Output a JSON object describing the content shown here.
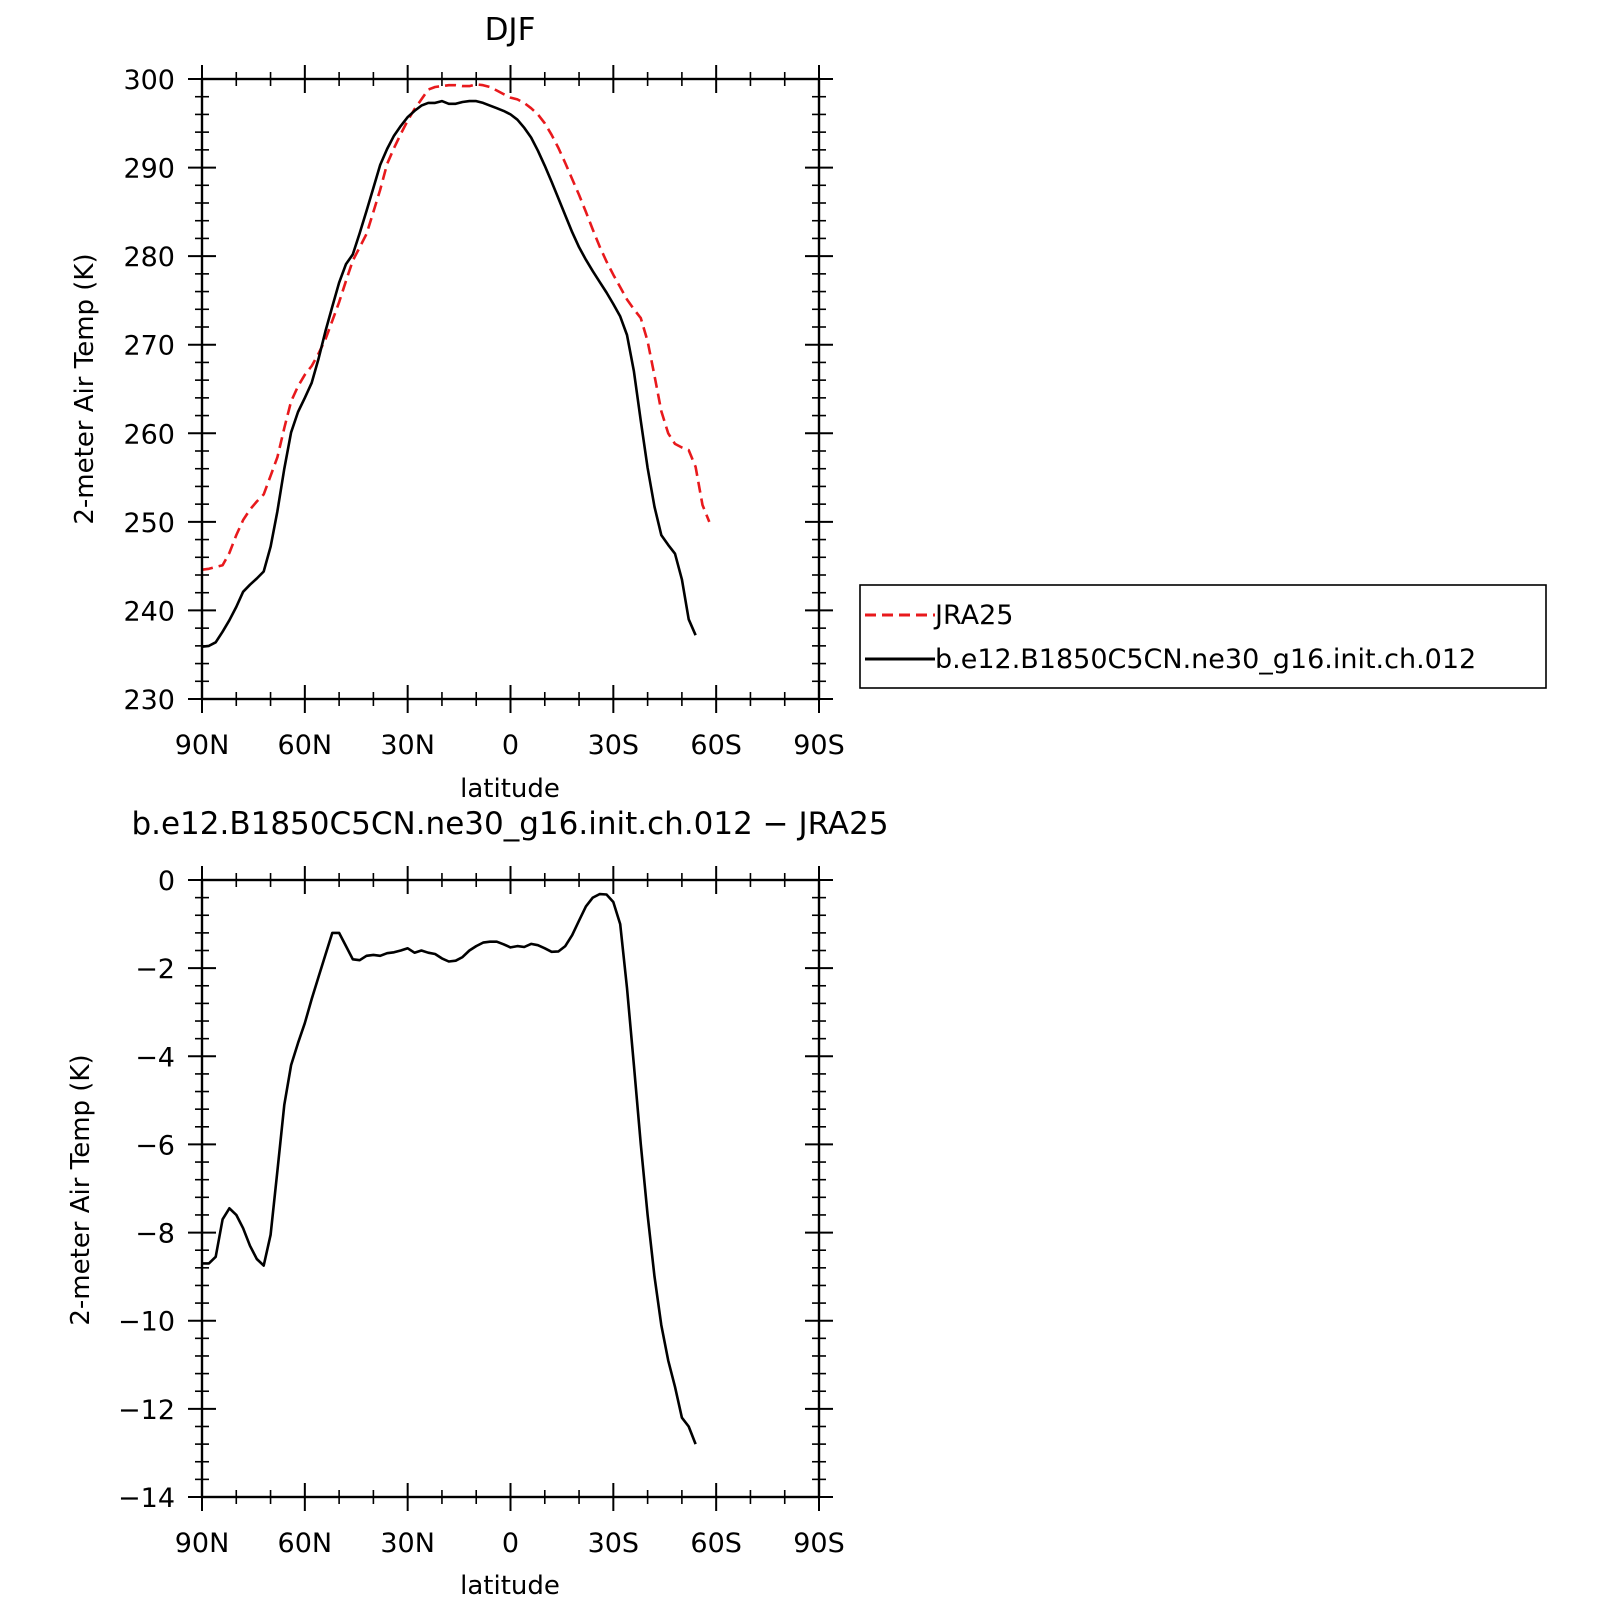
{
  "chart_data": [
    {
      "type": "line",
      "title": "DJF",
      "xlabel": "latitude",
      "ylabel": "2-meter Air Temp (K)",
      "xlim": [
        90,
        -90
      ],
      "ylim": [
        230,
        300
      ],
      "yticks": [
        230,
        240,
        250,
        260,
        270,
        280,
        290,
        300
      ],
      "xticks": [
        {
          "value": 90,
          "label": "90N"
        },
        {
          "value": 60,
          "label": "60N"
        },
        {
          "value": 30,
          "label": "30N"
        },
        {
          "value": 0,
          "label": "0"
        },
        {
          "value": -30,
          "label": "30S"
        },
        {
          "value": -60,
          "label": "60S"
        },
        {
          "value": -90,
          "label": "90S"
        }
      ],
      "legend": {
        "placement": "right",
        "entries": [
          "JRA25",
          "b.e12.B1850C5CN.ne30_g16.init.ch.012"
        ]
      },
      "series": [
        {
          "name": "JRA25",
          "color": "#e8191c",
          "dash": "dashed",
          "points": [
            [
              90,
              244.6
            ],
            [
              88,
              244.7
            ],
            [
              86,
              244.9
            ],
            [
              84,
              245.1
            ],
            [
              82,
              246.5
            ],
            [
              80,
              248.5
            ],
            [
              78,
              250.2
            ],
            [
              76,
              251.4
            ],
            [
              74,
              252.3
            ],
            [
              72,
              253.1
            ],
            [
              70,
              255.2
            ],
            [
              68,
              257.3
            ],
            [
              66,
              260.6
            ],
            [
              64,
              263.6
            ],
            [
              62,
              265.3
            ],
            [
              60,
              266.6
            ],
            [
              58,
              267.6
            ],
            [
              56,
              269.0
            ],
            [
              54,
              270.6
            ],
            [
              52,
              272.7
            ],
            [
              50,
              274.8
            ],
            [
              48,
              277.2
            ],
            [
              46,
              279.5
            ],
            [
              44,
              281.0
            ],
            [
              42,
              282.5
            ],
            [
              40,
              285.0
            ],
            [
              38,
              287.5
            ],
            [
              36,
              290.4
            ],
            [
              34,
              292.2
            ],
            [
              32,
              293.8
            ],
            [
              30,
              295.3
            ],
            [
              28,
              296.6
            ],
            [
              26,
              297.7
            ],
            [
              24,
              298.8
            ],
            [
              22,
              299.1
            ],
            [
              20,
              299.2
            ],
            [
              18,
              299.3
            ],
            [
              16,
              299.3
            ],
            [
              14,
              299.2
            ],
            [
              12,
              299.2
            ],
            [
              10,
              299.4
            ],
            [
              8,
              299.3
            ],
            [
              6,
              299.1
            ],
            [
              4,
              298.7
            ],
            [
              2,
              298.3
            ],
            [
              0,
              297.9
            ],
            [
              -2,
              297.7
            ],
            [
              -4,
              297.3
            ],
            [
              -6,
              296.7
            ],
            [
              -8,
              296.0
            ],
            [
              -10,
              295.0
            ],
            [
              -12,
              293.7
            ],
            [
              -14,
              292.2
            ],
            [
              -16,
              290.5
            ],
            [
              -18,
              288.7
            ],
            [
              -20,
              286.9
            ],
            [
              -22,
              285.0
            ],
            [
              -24,
              283.0
            ],
            [
              -26,
              281.1
            ],
            [
              -28,
              279.4
            ],
            [
              -30,
              277.9
            ],
            [
              -32,
              276.5
            ],
            [
              -34,
              275.1
            ],
            [
              -36,
              274.0
            ],
            [
              -38,
              273.0
            ],
            [
              -40,
              270.4
            ],
            [
              -42,
              266.5
            ],
            [
              -44,
              262.5
            ],
            [
              -46,
              260.0
            ],
            [
              -48,
              258.8
            ],
            [
              -50,
              258.4
            ],
            [
              -52,
              258.1
            ],
            [
              -54,
              256.2
            ],
            [
              -56,
              251.9
            ],
            [
              -58,
              250.0
            ]
          ]
        },
        {
          "name": "b.e12.B1850C5CN.ne30_g16.init.ch.012",
          "color": "#000000",
          "dash": "solid",
          "points": [
            [
              90,
              235.9
            ],
            [
              88,
              236.0
            ],
            [
              86,
              236.4
            ],
            [
              84,
              237.6
            ],
            [
              82,
              238.9
            ],
            [
              80,
              240.4
            ],
            [
              78,
              242.1
            ],
            [
              76,
              242.9
            ],
            [
              74,
              243.6
            ],
            [
              72,
              244.4
            ],
            [
              70,
              247.2
            ],
            [
              68,
              251.2
            ],
            [
              66,
              256.0
            ],
            [
              64,
              260.1
            ],
            [
              62,
              262.4
            ],
            [
              60,
              264.0
            ],
            [
              58,
              265.7
            ],
            [
              56,
              268.4
            ],
            [
              54,
              271.5
            ],
            [
              52,
              274.3
            ],
            [
              50,
              277.0
            ],
            [
              48,
              279.1
            ],
            [
              46,
              280.2
            ],
            [
              44,
              282.6
            ],
            [
              42,
              285.1
            ],
            [
              40,
              287.7
            ],
            [
              38,
              290.3
            ],
            [
              36,
              292.1
            ],
            [
              34,
              293.6
            ],
            [
              32,
              294.7
            ],
            [
              30,
              295.7
            ],
            [
              28,
              296.4
            ],
            [
              26,
              297.0
            ],
            [
              24,
              297.3
            ],
            [
              22,
              297.3
            ],
            [
              20,
              297.5
            ],
            [
              18,
              297.2
            ],
            [
              16,
              297.2
            ],
            [
              14,
              297.4
            ],
            [
              12,
              297.5
            ],
            [
              10,
              297.5
            ],
            [
              8,
              297.3
            ],
            [
              6,
              297.0
            ],
            [
              4,
              296.7
            ],
            [
              2,
              296.4
            ],
            [
              0,
              296.0
            ],
            [
              -2,
              295.4
            ],
            [
              -4,
              294.5
            ],
            [
              -6,
              293.4
            ],
            [
              -8,
              291.9
            ],
            [
              -10,
              290.2
            ],
            [
              -12,
              288.4
            ],
            [
              -14,
              286.5
            ],
            [
              -16,
              284.6
            ],
            [
              -18,
              282.7
            ],
            [
              -20,
              281.0
            ],
            [
              -22,
              279.6
            ],
            [
              -24,
              278.3
            ],
            [
              -26,
              277.1
            ],
            [
              -28,
              275.9
            ],
            [
              -30,
              274.6
            ],
            [
              -32,
              273.2
            ],
            [
              -34,
              271.1
            ],
            [
              -36,
              267.0
            ],
            [
              -38,
              261.4
            ],
            [
              -40,
              256.1
            ],
            [
              -42,
              251.7
            ],
            [
              -44,
              248.5
            ],
            [
              -46,
              247.4
            ],
            [
              -48,
              246.4
            ],
            [
              -50,
              243.5
            ],
            [
              -52,
              239.0
            ],
            [
              -54,
              237.2
            ]
          ]
        }
      ]
    },
    {
      "type": "line",
      "title": "b.e12.B1850C5CN.ne30_g16.init.ch.012 − JRA25",
      "xlabel": "latitude",
      "ylabel": "2-meter Air Temp (K)",
      "xlim": [
        90,
        -90
      ],
      "ylim": [
        -14,
        0
      ],
      "yticks": [
        -14,
        -12,
        -10,
        -8,
        -6,
        -4,
        -2,
        0
      ],
      "ytick_labels": [
        "−14",
        "−12",
        "−10",
        "−8",
        "−6",
        "−4",
        "−2",
        "0"
      ],
      "xticks": [
        {
          "value": 90,
          "label": "90N"
        },
        {
          "value": 60,
          "label": "60N"
        },
        {
          "value": 30,
          "label": "30N"
        },
        {
          "value": 0,
          "label": "0"
        },
        {
          "value": -30,
          "label": "30S"
        },
        {
          "value": -60,
          "label": "60S"
        },
        {
          "value": -90,
          "label": "90S"
        }
      ],
      "series": [
        {
          "color": "#000000",
          "dash": "solid",
          "points": [
            [
              90,
              -8.7
            ],
            [
              88,
              -8.7
            ],
            [
              86,
              -8.55
            ],
            [
              84,
              -7.7
            ],
            [
              82,
              -7.45
            ],
            [
              80,
              -7.6
            ],
            [
              78,
              -7.9
            ],
            [
              76,
              -8.3
            ],
            [
              74,
              -8.6
            ],
            [
              72,
              -8.75
            ],
            [
              70,
              -8.05
            ],
            [
              68,
              -6.6
            ],
            [
              66,
              -5.1
            ],
            [
              64,
              -4.2
            ],
            [
              62,
              -3.7
            ],
            [
              60,
              -3.25
            ],
            [
              58,
              -2.7
            ],
            [
              56,
              -2.2
            ],
            [
              54,
              -1.7
            ],
            [
              52,
              -1.2
            ],
            [
              50,
              -1.2
            ],
            [
              48,
              -1.5
            ],
            [
              46,
              -1.8
            ],
            [
              44,
              -1.82
            ],
            [
              42,
              -1.72
            ],
            [
              40,
              -1.7
            ],
            [
              38,
              -1.72
            ],
            [
              36,
              -1.66
            ],
            [
              34,
              -1.64
            ],
            [
              32,
              -1.6
            ],
            [
              30,
              -1.55
            ],
            [
              28,
              -1.65
            ],
            [
              26,
              -1.6
            ],
            [
              24,
              -1.65
            ],
            [
              22,
              -1.68
            ],
            [
              20,
              -1.78
            ],
            [
              18,
              -1.85
            ],
            [
              16,
              -1.83
            ],
            [
              14,
              -1.75
            ],
            [
              12,
              -1.6
            ],
            [
              10,
              -1.5
            ],
            [
              8,
              -1.42
            ],
            [
              6,
              -1.4
            ],
            [
              4,
              -1.4
            ],
            [
              2,
              -1.46
            ],
            [
              0,
              -1.53
            ],
            [
              -2,
              -1.5
            ],
            [
              -4,
              -1.52
            ],
            [
              -6,
              -1.45
            ],
            [
              -8,
              -1.48
            ],
            [
              -10,
              -1.55
            ],
            [
              -12,
              -1.63
            ],
            [
              -14,
              -1.62
            ],
            [
              -16,
              -1.5
            ],
            [
              -18,
              -1.25
            ],
            [
              -20,
              -0.92
            ],
            [
              -22,
              -0.6
            ],
            [
              -24,
              -0.4
            ],
            [
              -26,
              -0.32
            ],
            [
              -28,
              -0.33
            ],
            [
              -30,
              -0.5
            ],
            [
              -32,
              -1.0
            ],
            [
              -34,
              -2.45
            ],
            [
              -36,
              -4.2
            ],
            [
              -38,
              -6.0
            ],
            [
              -40,
              -7.6
            ],
            [
              -42,
              -9.0
            ],
            [
              -44,
              -10.1
            ],
            [
              -46,
              -10.9
            ],
            [
              -48,
              -11.5
            ],
            [
              -50,
              -12.2
            ],
            [
              -52,
              -12.4
            ],
            [
              -54,
              -12.8
            ]
          ]
        }
      ]
    }
  ]
}
